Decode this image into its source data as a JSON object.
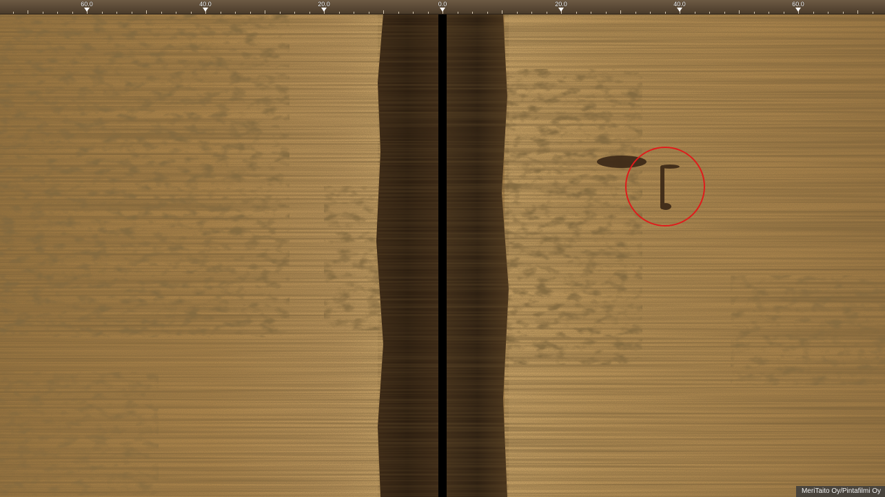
{
  "scale": {
    "ticks": [
      {
        "label": "60.0",
        "side": "port",
        "range": 60
      },
      {
        "label": "40.0",
        "side": "port",
        "range": 40
      },
      {
        "label": "20.0",
        "side": "port",
        "range": 20
      },
      {
        "label": "0.0",
        "side": "center",
        "range": 0
      },
      {
        "label": "20.0",
        "side": "starboard",
        "range": 20
      },
      {
        "label": "40.0",
        "side": "starboard",
        "range": 40
      },
      {
        "label": "60.0",
        "side": "starboard",
        "range": 60
      }
    ],
    "max_range": 75
  },
  "sonar": {
    "type": "side-scan-sonar",
    "palette": {
      "base": "#b58a4c",
      "light": "#d2a868",
      "dark": "#3c2a18",
      "water_column": "#2e2012",
      "nadir": "#000000"
    },
    "highlight": {
      "color": "#e01b1b",
      "target_side": "starboard",
      "target_range": 37
    }
  },
  "credit": {
    "text": "MeriTaito Oy/Pintafilmi Oy"
  }
}
